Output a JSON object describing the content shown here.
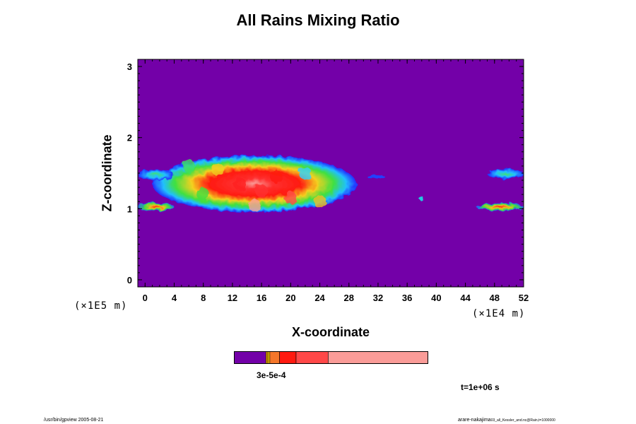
{
  "chart_data": {
    "type": "heatmap",
    "title": "All Rains Mixing Ratio",
    "xlabel": "X-coordinate",
    "ylabel": "Z-coordinate",
    "x_scale_label": "(×1E4 m)",
    "y_scale_label": "(×1E5 m)",
    "xlim": [
      -1,
      52
    ],
    "ylim": [
      -0.1,
      3.1
    ],
    "x_ticks": [
      0,
      4,
      8,
      12,
      16,
      20,
      24,
      28,
      32,
      36,
      40,
      44,
      48,
      52
    ],
    "y_ticks": [
      0,
      1,
      2,
      3
    ],
    "background_color": "#7300a8",
    "colorbar": {
      "segments": [
        {
          "color": "#7300a8",
          "fraction": 0.165
        },
        {
          "color": "#e6a100",
          "fraction": 0.01
        },
        {
          "color": "#f5c400",
          "fraction": 0.01
        },
        {
          "color": "#f4762a",
          "fraction": 0.05
        },
        {
          "color": "#ff1a10",
          "fraction": 0.085
        },
        {
          "color": "#ff4848",
          "fraction": 0.165
        },
        {
          "color": "#fa9c98",
          "fraction": 0.515
        }
      ],
      "tick_labels_overlapped": "3e-5e-4"
    },
    "time_label": "t=1e+06 s",
    "features": [
      {
        "type": "rain_region",
        "x_range": [
          1,
          29
        ],
        "z_range": [
          0.95,
          1.75
        ],
        "peak": "red-pink",
        "center_x": 15,
        "center_z": 1.3
      },
      {
        "type": "rain_region",
        "x_range": [
          -1,
          4
        ],
        "z_range": [
          1.4,
          1.55
        ],
        "peak": "blue-green"
      },
      {
        "type": "rain_region",
        "x_range": [
          -1,
          4
        ],
        "z_range": [
          0.97,
          1.08
        ],
        "peak": "orange"
      },
      {
        "type": "rain_region",
        "x_range": [
          30.5,
          33
        ],
        "z_range": [
          1.42,
          1.47
        ],
        "peak": "blue"
      },
      {
        "type": "rain_region",
        "x_range": [
          37.6,
          38.3
        ],
        "z_range": [
          1.12,
          1.17
        ],
        "peak": "cyan"
      },
      {
        "type": "rain_region",
        "x_range": [
          47,
          52
        ],
        "z_range": [
          1.42,
          1.56
        ],
        "peak": "blue-green"
      },
      {
        "type": "rain_region",
        "x_range": [
          45.5,
          52
        ],
        "z_range": [
          0.97,
          1.08
        ],
        "peak": "orange-red"
      }
    ]
  },
  "footer": {
    "left": "/usr/bin/gpview 2005-08-21",
    "right_main": "arare-nakajima",
    "right_small": "03_all_Kessler_and.nc@Rain,t=1000000"
  }
}
